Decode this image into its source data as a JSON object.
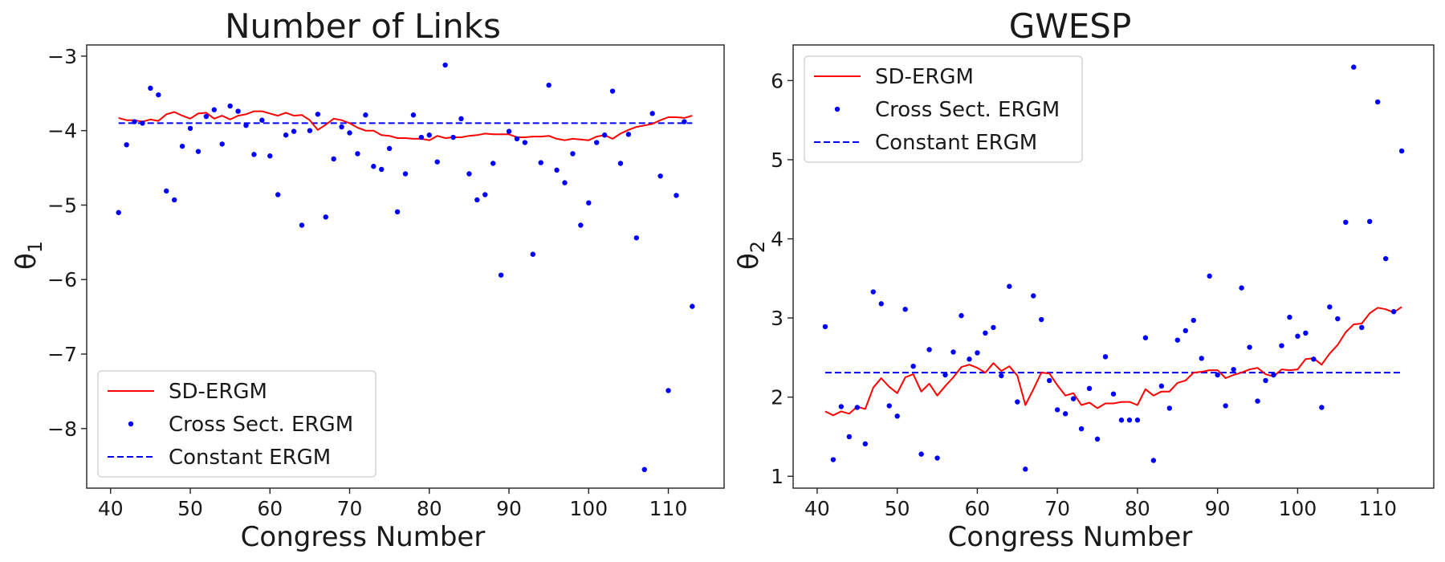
{
  "chart_data": [
    {
      "type": "line",
      "title": "Number of Links",
      "xlabel": "Congress Number",
      "ylabel": "θ",
      "ylabel_sub": "1",
      "xlim": [
        37,
        117
      ],
      "ylim": [
        -8.8,
        -2.85
      ],
      "xticks": [
        40,
        50,
        60,
        70,
        80,
        90,
        100,
        110
      ],
      "yticks": [
        -8,
        -7,
        -6,
        -5,
        -4,
        -3
      ],
      "ytick_labels": [
        "−8",
        "−7",
        "−6",
        "−5",
        "−4",
        "−3"
      ],
      "grid": false,
      "legend_position": "lower-left",
      "legend": [
        "SD-ERGM",
        "Cross Sect. ERGM",
        "Constant ERGM"
      ],
      "colors": {
        "sd": "#ff0000",
        "cross": "#0000ff",
        "constant": "#0000ff"
      },
      "x": [
        41,
        42,
        43,
        44,
        45,
        46,
        47,
        48,
        49,
        50,
        51,
        52,
        53,
        54,
        55,
        56,
        57,
        58,
        59,
        60,
        61,
        62,
        63,
        64,
        65,
        66,
        67,
        68,
        69,
        70,
        71,
        72,
        73,
        74,
        75,
        76,
        77,
        78,
        79,
        80,
        81,
        82,
        83,
        84,
        85,
        86,
        87,
        88,
        89,
        90,
        91,
        92,
        93,
        94,
        95,
        96,
        97,
        98,
        99,
        100,
        101,
        102,
        103,
        104,
        105,
        106,
        107,
        108,
        109,
        110,
        111,
        112,
        113
      ],
      "series": [
        {
          "style": "line",
          "values": [
            -3.83,
            -3.86,
            -3.86,
            -3.88,
            -3.85,
            -3.87,
            -3.78,
            -3.75,
            -3.8,
            -3.84,
            -3.77,
            -3.76,
            -3.84,
            -3.8,
            -3.85,
            -3.8,
            -3.78,
            -3.74,
            -3.74,
            -3.77,
            -3.8,
            -3.76,
            -3.8,
            -3.79,
            -3.86,
            -3.99,
            -3.92,
            -3.84,
            -3.86,
            -3.9,
            -3.96,
            -4.0,
            -4.0,
            -4.06,
            -4.07,
            -4.1,
            -4.1,
            -4.11,
            -4.11,
            -4.13,
            -4.07,
            -4.1,
            -4.09,
            -4.09,
            -4.07,
            -4.06,
            -4.04,
            -4.05,
            -4.05,
            -4.05,
            -4.09,
            -4.09,
            -4.08,
            -4.08,
            -4.07,
            -4.11,
            -4.13,
            -4.11,
            -4.12,
            -4.13,
            -4.08,
            -4.06,
            -4.11,
            -4.04,
            -3.99,
            -3.95,
            -3.93,
            -3.91,
            -3.86,
            -3.82,
            -3.82,
            -3.83,
            -3.8
          ]
        },
        {
          "style": "points",
          "values": [
            -5.1,
            -4.19,
            -3.88,
            -3.9,
            -3.43,
            -3.52,
            -4.81,
            -4.93,
            -4.21,
            -3.97,
            -4.28,
            -3.81,
            -3.72,
            -4.18,
            -3.67,
            -3.74,
            -3.93,
            -4.32,
            -3.86,
            -4.34,
            -4.86,
            -4.06,
            -4.01,
            -5.27,
            -4.0,
            -3.78,
            -5.16,
            -4.38,
            -3.95,
            -4.03,
            -4.31,
            -3.79,
            -4.48,
            -4.52,
            -4.24,
            -5.09,
            -4.58,
            -3.79,
            -4.09,
            -4.06,
            -4.42,
            -3.12,
            -4.09,
            -3.84,
            -4.58,
            -4.93,
            -4.86,
            -4.44,
            -5.94,
            -4.01,
            -4.11,
            -4.16,
            -5.66,
            -4.43,
            -3.39,
            -4.53,
            -4.7,
            -4.31,
            -5.27,
            -4.97,
            -4.16,
            -4.06,
            -3.47,
            -4.44,
            -4.05,
            -5.44,
            -8.55,
            -3.77,
            -4.61,
            -7.49,
            -4.87,
            -3.88,
            -6.36
          ]
        },
        {
          "style": "dashed",
          "values": [
            -3.9,
            -3.9
          ],
          "x": [
            41,
            113
          ]
        }
      ]
    },
    {
      "type": "line",
      "title": "GWESP",
      "xlabel": "Congress Number",
      "ylabel": "θ",
      "ylabel_sub": "2",
      "xlim": [
        37,
        117
      ],
      "ylim": [
        0.85,
        6.45
      ],
      "xticks": [
        40,
        50,
        60,
        70,
        80,
        90,
        100,
        110
      ],
      "yticks": [
        1,
        2,
        3,
        4,
        5,
        6
      ],
      "ytick_labels": [
        "1",
        "2",
        "3",
        "4",
        "5",
        "6"
      ],
      "grid": false,
      "legend_position": "top-left",
      "legend": [
        "SD-ERGM",
        "Cross Sect. ERGM",
        "Constant ERGM"
      ],
      "colors": {
        "sd": "#ff0000",
        "cross": "#0000ff",
        "constant": "#0000ff"
      },
      "x": [
        41,
        42,
        43,
        44,
        45,
        46,
        47,
        48,
        49,
        50,
        51,
        52,
        53,
        54,
        55,
        56,
        57,
        58,
        59,
        60,
        61,
        62,
        63,
        64,
        65,
        66,
        67,
        68,
        69,
        70,
        71,
        72,
        73,
        74,
        75,
        76,
        77,
        78,
        79,
        80,
        81,
        82,
        83,
        84,
        85,
        86,
        87,
        88,
        89,
        90,
        91,
        92,
        93,
        94,
        95,
        96,
        97,
        98,
        99,
        100,
        101,
        102,
        103,
        104,
        105,
        106,
        107,
        108,
        109,
        110,
        111,
        112,
        113
      ],
      "series": [
        {
          "style": "line",
          "values": [
            1.82,
            1.77,
            1.82,
            1.79,
            1.88,
            1.85,
            2.12,
            2.24,
            2.13,
            2.05,
            2.25,
            2.29,
            2.07,
            2.17,
            2.02,
            2.14,
            2.25,
            2.38,
            2.41,
            2.37,
            2.31,
            2.43,
            2.33,
            2.39,
            2.27,
            1.9,
            2.1,
            2.31,
            2.3,
            2.15,
            2.02,
            2.05,
            1.9,
            1.93,
            1.86,
            1.92,
            1.92,
            1.94,
            1.94,
            1.9,
            2.1,
            2.02,
            2.07,
            2.07,
            2.18,
            2.21,
            2.31,
            2.32,
            2.34,
            2.34,
            2.24,
            2.28,
            2.31,
            2.35,
            2.37,
            2.29,
            2.26,
            2.35,
            2.34,
            2.35,
            2.48,
            2.49,
            2.41,
            2.55,
            2.66,
            2.82,
            2.92,
            2.93,
            3.06,
            3.13,
            3.11,
            3.07,
            3.14
          ]
        },
        {
          "style": "points",
          "values": [
            2.89,
            1.21,
            1.88,
            1.5,
            1.87,
            1.41,
            3.33,
            3.18,
            1.89,
            1.76,
            3.11,
            2.39,
            1.28,
            2.6,
            1.23,
            2.28,
            2.57,
            3.03,
            2.48,
            2.56,
            2.81,
            2.88,
            2.27,
            3.4,
            1.94,
            1.09,
            3.28,
            2.98,
            2.21,
            1.84,
            1.79,
            1.98,
            1.6,
            2.11,
            1.47,
            2.51,
            2.04,
            1.71,
            1.71,
            1.71,
            2.75,
            1.2,
            2.14,
            1.86,
            2.72,
            2.84,
            2.97,
            2.49,
            3.53,
            2.28,
            1.89,
            2.35,
            3.38,
            2.63,
            1.95,
            2.21,
            2.28,
            2.65,
            3.01,
            2.77,
            2.81,
            2.48,
            1.87,
            3.14,
            2.99,
            4.21,
            6.17,
            2.88,
            4.22,
            5.73,
            3.75,
            3.08,
            5.11
          ]
        },
        {
          "style": "dashed",
          "values": [
            2.31,
            2.31
          ],
          "x": [
            41,
            113
          ]
        }
      ]
    }
  ]
}
